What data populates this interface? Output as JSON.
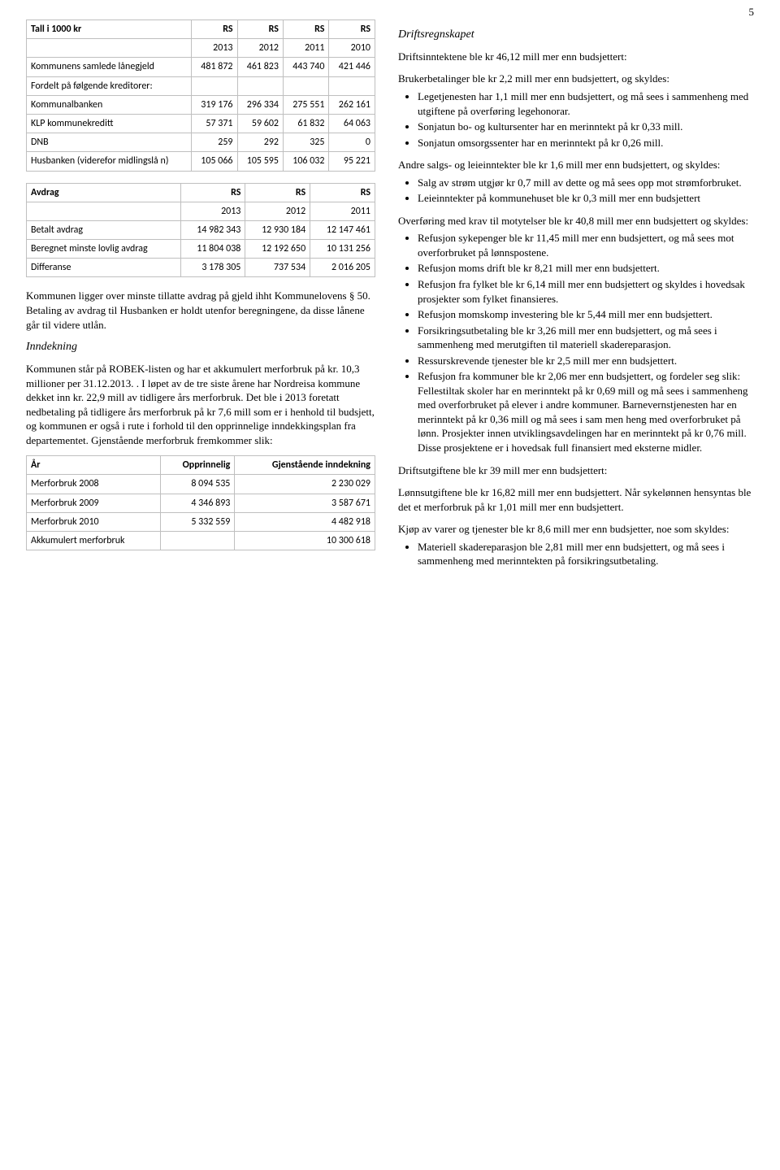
{
  "page_number": "5",
  "table1": {
    "head_row1": [
      "Tall i 1000 kr",
      "RS",
      "RS",
      "RS",
      "RS"
    ],
    "head_row2": [
      "",
      "2013",
      "2012",
      "2011",
      "2010"
    ],
    "rows": [
      [
        "Kommunens samlede lånegjeld",
        "481 872",
        "461 823",
        "443 740",
        "421 446"
      ],
      [
        "Fordelt på følgende kreditorer:",
        "",
        "",
        "",
        ""
      ],
      [
        "Kommunalbanken",
        "319 176",
        "296 334",
        "275 551",
        "262 161"
      ],
      [
        "KLP kommunekreditt",
        "57 371",
        "59 602",
        "61 832",
        "64 063"
      ],
      [
        "DNB",
        "259",
        "292",
        "325",
        "0"
      ],
      [
        "Husbanken (viderefor midlingslå n)",
        "105 066",
        "105 595",
        "106 032",
        "95 221"
      ]
    ]
  },
  "table2": {
    "head_row1": [
      "Avdrag",
      "RS",
      "RS",
      "RS"
    ],
    "head_row2": [
      "",
      "2013",
      "2012",
      "2011"
    ],
    "rows": [
      [
        "Betalt avdrag",
        "14 982 343",
        "12 930 184",
        "12 147 461"
      ],
      [
        "Beregnet minste lovlig avdrag",
        "11 804 038",
        "12 192 650",
        "10 131 256"
      ],
      [
        "Differanse",
        "3 178 305",
        "737 534",
        "2 016 205"
      ]
    ]
  },
  "table3": {
    "head": [
      "År",
      "Opprinnelig",
      "Gjenstående inndekning"
    ],
    "rows": [
      [
        "Merforbruk 2008",
        "8 094 535",
        "2 230 029"
      ],
      [
        "Merforbruk 2009",
        "4 346 893",
        "3 587 671"
      ],
      [
        "Merforbruk 2010",
        "5 332 559",
        "4 482 918"
      ],
      [
        "Akkumulert merforbruk",
        "",
        "10 300 618"
      ]
    ]
  },
  "left_para1": "Kommunen ligger over minste tillatte avdrag på gjeld ihht Kommunelovens § 50. Betaling av avdrag til Husbanken er holdt utenfor beregningene, da disse lånene går til videre utlån.",
  "left_h_inndekning": "Inndekning",
  "left_para2": "Kommunen står på ROBEK-listen og har et akkumulert merforbruk på kr. 10,3 millioner per 31.12.2013. . I løpet av de tre siste årene har Nordreisa kommune dekket inn kr. 22,9 mill av tidligere års merforbruk. Det ble i 2013 foretatt nedbetaling på tidligere års merforbruk på kr 7,6 mill som er i henhold til budsjett, og kommunen er også i rute i forhold til den opprinnelige inndekkingsplan fra departementet. Gjenstående merforbruk fremkommer slik:",
  "right_h_drift": "Driftsregnskapet",
  "right_p1": "Driftsinntektene ble kr 46,12 mill mer enn budsjettert:",
  "right_p2": "Brukerbetalinger ble kr 2,2 mill mer enn budsjettert, og skyldes:",
  "right_list1": [
    "Legetjenesten har 1,1 mill mer enn budsjettert, og må sees i sammenheng med utgiftene på overføring legehonorar.",
    "Sonjatun bo- og kultursenter har en merinntekt på kr 0,33 mill.",
    "Sonjatun omsorgssenter har en merinntekt på kr 0,26 mill."
  ],
  "right_p3": "Andre salgs- og leieinntekter ble kr 1,6 mill mer enn budsjettert, og skyldes:",
  "right_list2": [
    "Salg av strøm utgjør kr 0,7 mill av dette og må sees opp mot strømforbruket.",
    "Leieinntekter på kommunehuset ble kr 0,3 mill mer enn budsjettert"
  ],
  "right_p4": "Overføring med krav til motytelser ble kr 40,8 mill mer enn budsjettert og skyldes:",
  "right_list3": [
    "Refusjon sykepenger ble kr 11,45 mill mer enn budsjettert, og må sees mot overforbruket på lønnspostene.",
    "Refusjon moms drift ble kr 8,21 mill mer enn budsjettert.",
    "Refusjon fra fylket ble kr 6,14 mill mer enn budsjettert og skyldes i hovedsak prosjekter som fylket finansieres.",
    "Refusjon momskomp investering ble kr 5,44 mill mer enn budsjettert.",
    "Forsikringsutbetaling ble kr 3,26 mill mer enn budsjettert, og må sees i sammenheng med merutgiften til materiell skadereparasjon.",
    "Ressurskrevende tjenester ble kr 2,5 mill mer enn budsjettert.",
    "Refusjon fra kommuner ble kr 2,06 mer enn budsjettert, og fordeler seg slik:\nFellestiltak skoler har en merinntekt på kr 0,69 mill og må sees i sammenheng med overforbruket på elever i andre kommuner. Barnevernstjenesten har en merinntekt på kr 0,36 mill og må sees i sam men heng med overforbruket på lønn. Prosjekter innen utviklingsavdelingen har en merinntekt på kr 0,76 mill. Disse prosjektene er i hovedsak full finansiert med eksterne midler."
  ],
  "right_p5": "Driftsutgiftene ble kr 39 mill mer enn budsjettert:",
  "right_p6": "Lønnsutgiftene ble kr 16,82 mill mer enn budsjettert. Når sykelønnen hensyntas ble det et merforbruk på kr 1,01 mill mer enn budsjettert.",
  "right_p7": "Kjøp av varer og tjenester ble kr 8,6 mill mer enn budsjetter, noe som skyldes:",
  "right_list4": [
    "Materiell skadereparasjon ble 2,81 mill mer enn budsjettert, og må sees i sammenheng med merinntekten på forsikringsutbetaling."
  ]
}
